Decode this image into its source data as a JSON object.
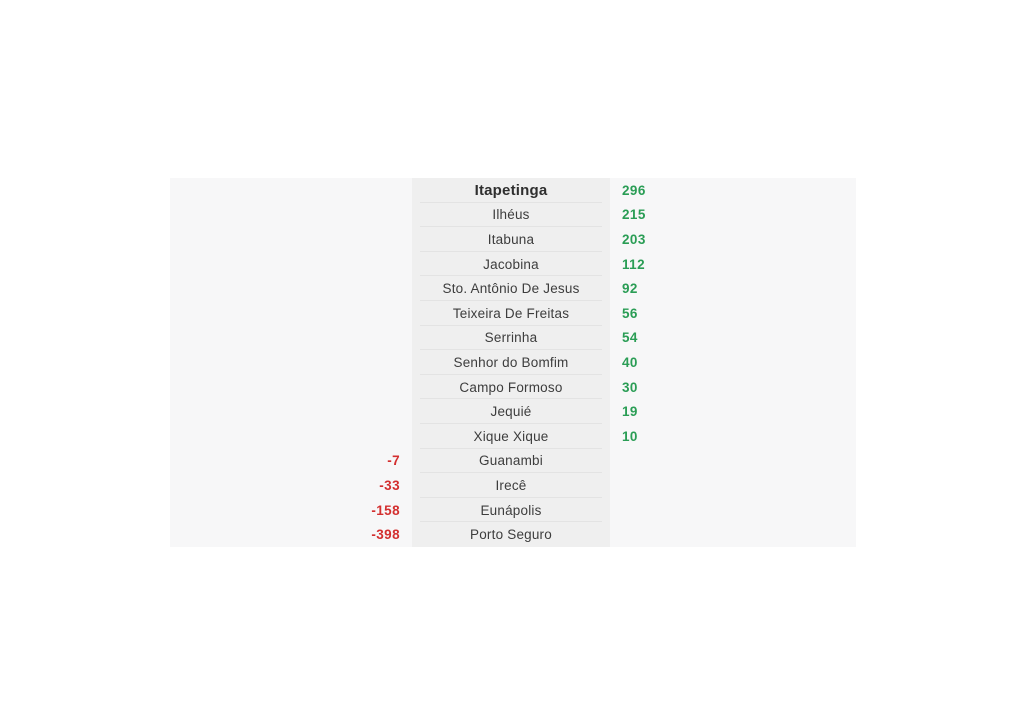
{
  "colors": {
    "page_bg": "#ffffff",
    "panel_bg": "#f7f7f8",
    "strip_bg": "#efefef",
    "divider": "#e3e3e3",
    "city_text": "#3d3d3d",
    "positive": "#2a9d55",
    "negative": "#d32f2f"
  },
  "chart_data": {
    "type": "table",
    "title": "",
    "description": "City ranking list with positive values shown in green on the right and negative values shown in red on the left",
    "columns": [
      "city",
      "value"
    ],
    "rows": [
      {
        "city": "Itapetinga",
        "value": 296,
        "highlighted": true
      },
      {
        "city": "Ilhéus",
        "value": 215
      },
      {
        "city": "Itabuna",
        "value": 203
      },
      {
        "city": "Jacobina",
        "value": 112
      },
      {
        "city": "Sto. Antônio De Jesus",
        "value": 92
      },
      {
        "city": "Teixeira De Freitas",
        "value": 56
      },
      {
        "city": "Serrinha",
        "value": 54
      },
      {
        "city": "Senhor do Bomfim",
        "value": 40
      },
      {
        "city": "Campo Formoso",
        "value": 30
      },
      {
        "city": "Jequié",
        "value": 19
      },
      {
        "city": "Xique Xique",
        "value": 10
      },
      {
        "city": "Guanambi",
        "value": -7
      },
      {
        "city": "Irecê",
        "value": -33
      },
      {
        "city": "Eunápolis",
        "value": -158
      },
      {
        "city": "Porto Seguro",
        "value": -398
      }
    ],
    "value_color_positive": "#2a9d55",
    "value_color_negative": "#d32f2f",
    "layout": {
      "negative_values_side": "left",
      "positive_values_side": "right",
      "city_column": "center",
      "row_dividers": true
    }
  }
}
